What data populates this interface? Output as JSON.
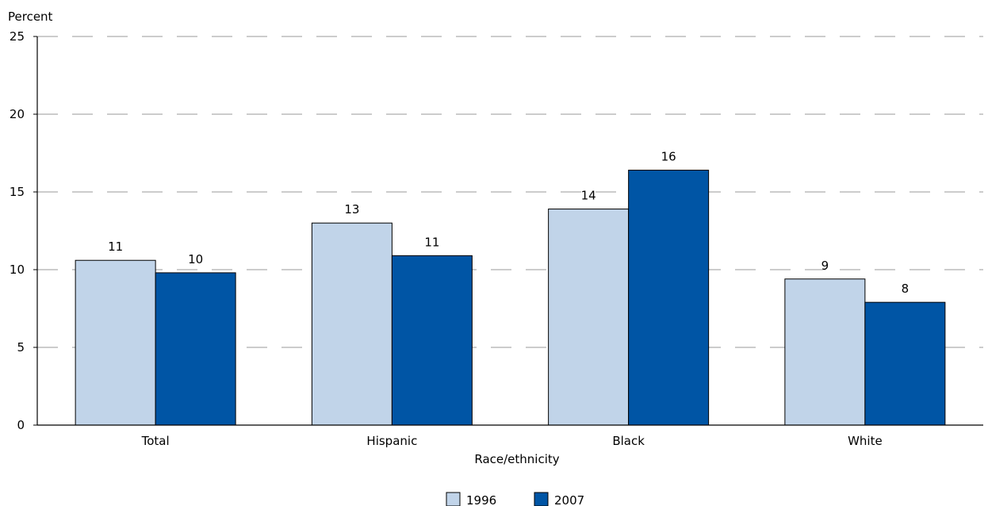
{
  "chart_data": {
    "type": "bar",
    "ylabel": "Percent",
    "xlabel": "Race/ethnicity",
    "categories": [
      "Total",
      "Hispanic",
      "Black",
      "White"
    ],
    "series": [
      {
        "name": "1996",
        "values": [
          10.6,
          13.0,
          13.9,
          9.4
        ],
        "labels": [
          "11",
          "13",
          "14",
          "9"
        ],
        "color": "#c1d4e9"
      },
      {
        "name": "2007",
        "values": [
          9.8,
          10.9,
          16.4,
          7.9
        ],
        "labels": [
          "10",
          "11",
          "16",
          "8"
        ],
        "color": "#0055a5"
      }
    ],
    "ylim": [
      0,
      25
    ],
    "yticks": [
      0,
      5,
      10,
      15,
      20,
      25
    ],
    "grid": "dashed horizontal",
    "legend": "bottom-center"
  }
}
